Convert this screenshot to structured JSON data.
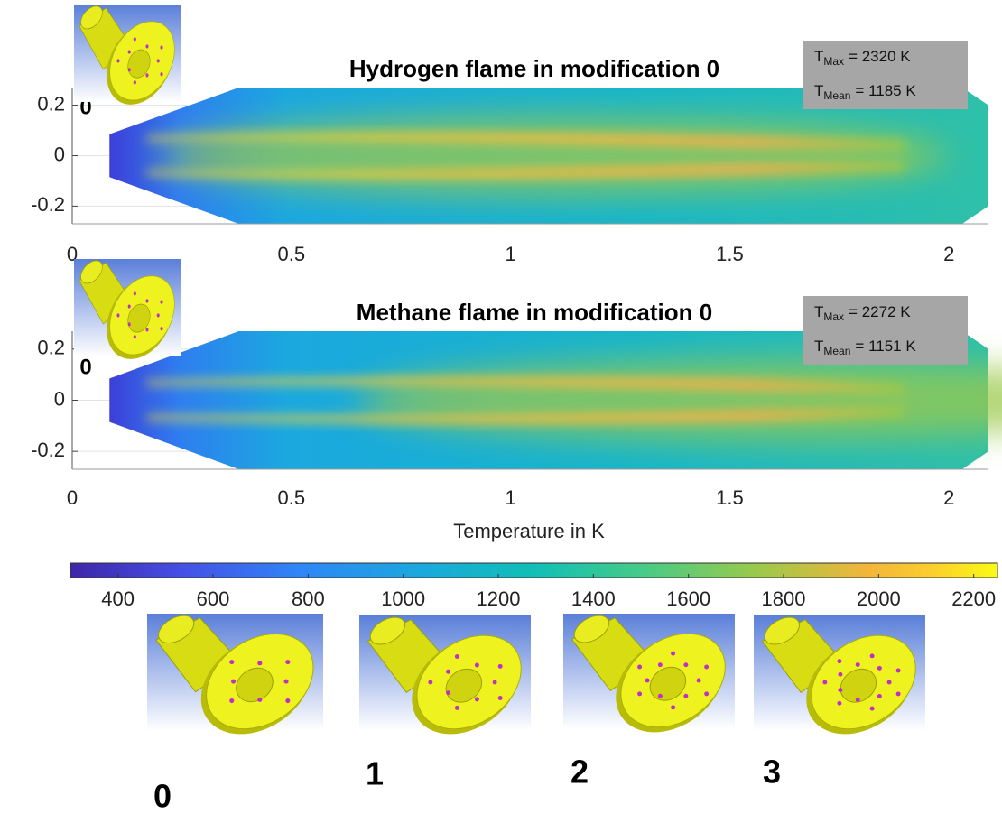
{
  "chart_data": [
    {
      "type": "contour",
      "title": "Hydrogen flame in modification 0",
      "xlim": [
        0,
        2.09
      ],
      "ylim": [
        -0.27,
        0.27
      ],
      "xticks": [
        0,
        0.5,
        1,
        1.5,
        2
      ],
      "yticks": [
        -0.2,
        0,
        0.2
      ],
      "inset_label": "0",
      "annotations": [
        {
          "symbol": "T",
          "sub": "Max",
          "text": "= 2320 K"
        },
        {
          "symbol": "T",
          "sub": "Mean",
          "text": "= 1185 K"
        }
      ]
    },
    {
      "type": "contour",
      "title": "Methane flame in modification 0",
      "xlim": [
        0,
        2.09
      ],
      "ylim": [
        -0.27,
        0.27
      ],
      "xticks": [
        0,
        0.5,
        1,
        1.5,
        2
      ],
      "yticks": [
        -0.2,
        0,
        0.2
      ],
      "inset_label": "0",
      "annotations": [
        {
          "symbol": "T",
          "sub": "Max",
          "text": "= 2272 K"
        },
        {
          "symbol": "T",
          "sub": "Mean",
          "text": "= 1151 K"
        }
      ]
    },
    {
      "type": "colorbar",
      "xlabel": "Temperature in K",
      "xlim": [
        300,
        2250
      ],
      "xticks": [
        400,
        600,
        800,
        1000,
        1200,
        1400,
        1600,
        1800,
        2000,
        2200
      ]
    }
  ],
  "thumbnails": [
    {
      "label": "0"
    },
    {
      "label": "1"
    },
    {
      "label": "2"
    },
    {
      "label": "3"
    }
  ]
}
